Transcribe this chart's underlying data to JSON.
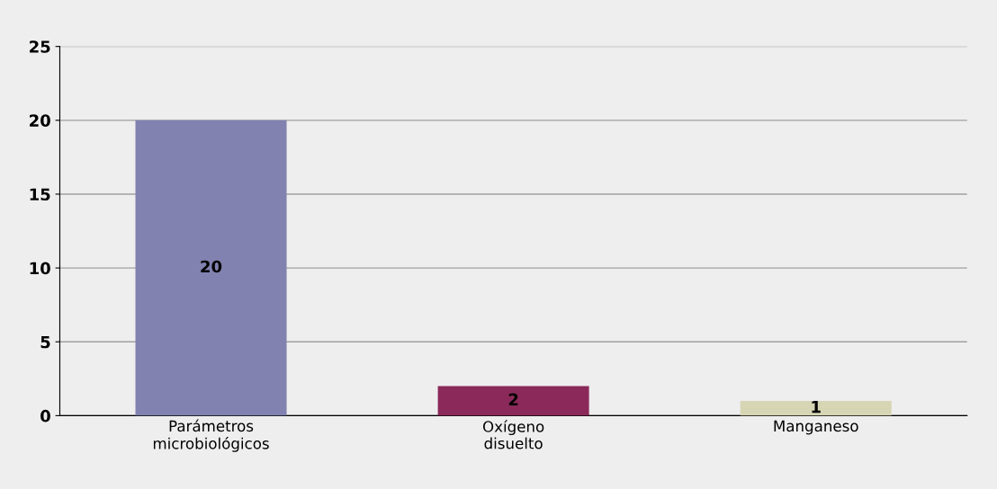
{
  "chart_data": {
    "type": "bar",
    "categories": [
      "Parámetros\nmicrobiológicos",
      "Oxígeno\ndisuelto",
      "Manganeso"
    ],
    "values": [
      20,
      2,
      1
    ],
    "colors": [
      "#8282b0",
      "#8b2a5a",
      "#d6d6b4"
    ],
    "ylim": [
      0,
      25
    ],
    "yticks": [
      0,
      5,
      10,
      15,
      20,
      25
    ],
    "grid": "y",
    "data_labels": true
  }
}
